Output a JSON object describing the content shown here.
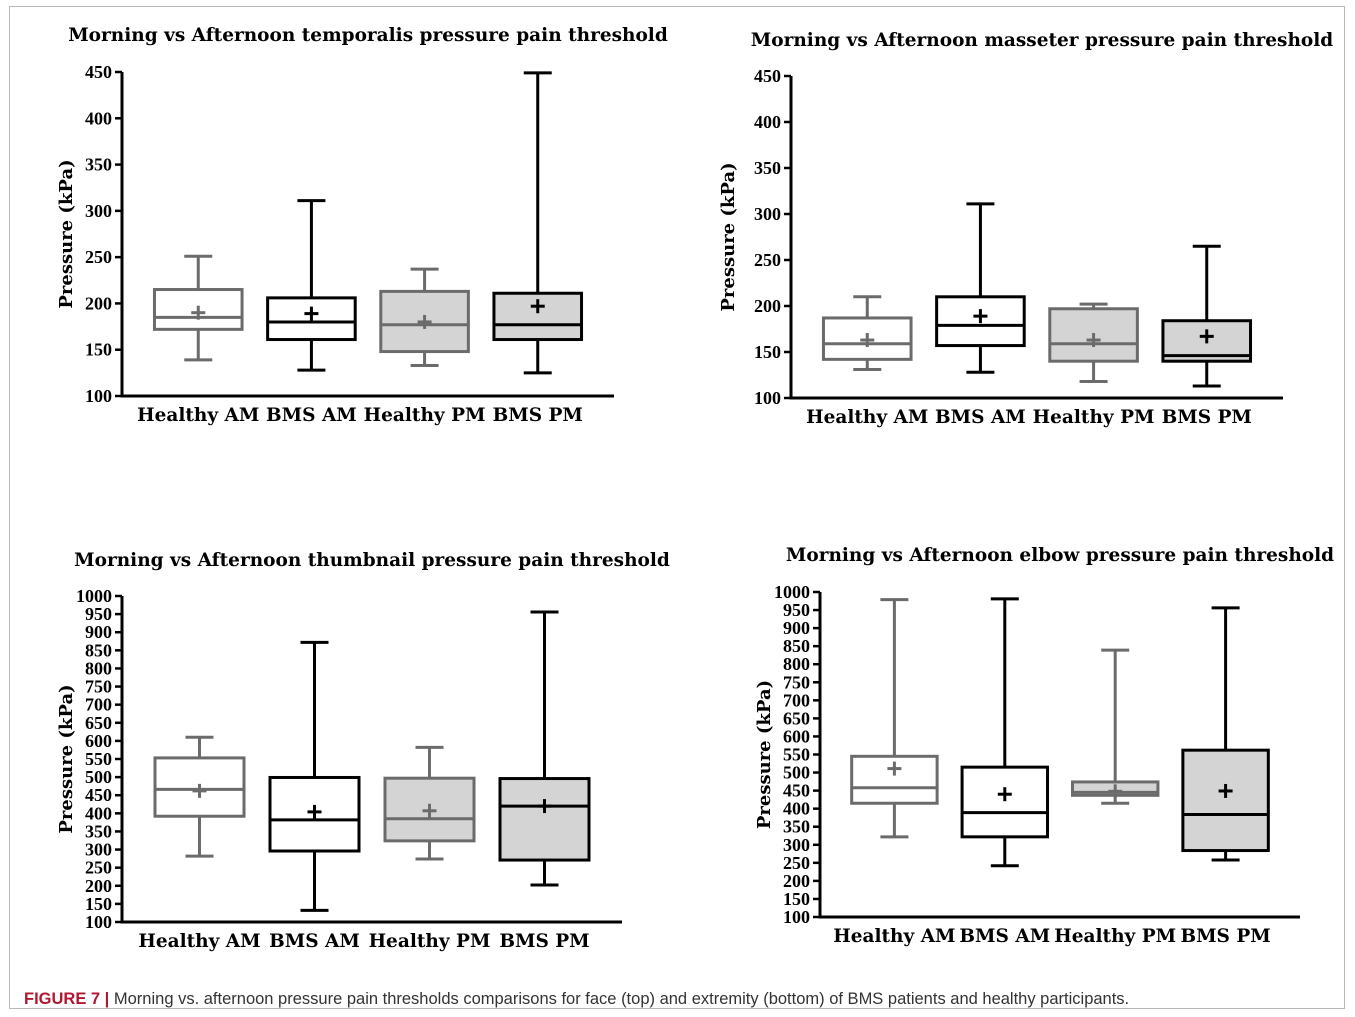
{
  "figure": {
    "label": "FIGURE 7 |",
    "caption": "Morning vs. afternoon pressure pain thresholds comparisons for face (top) and extremity (bottom) of BMS patients and healthy participants."
  },
  "colors": {
    "gray_stroke": "#6b6b6b",
    "black_stroke": "#000000",
    "pm_fill": "#d4d4d4",
    "caption_label": "#b01832"
  },
  "chart_data": [
    {
      "type": "box",
      "title": "Morning vs Afternoon temporalis pressure pain threshold",
      "ylabel": "Pressure (kPa)",
      "ylim": [
        100,
        450
      ],
      "yticks": [
        100,
        150,
        200,
        250,
        300,
        350,
        400,
        450
      ],
      "categories": [
        "Healthy AM",
        "BMS AM",
        "Healthy PM",
        "BMS PM"
      ],
      "boxes": [
        {
          "category": "Healthy AM",
          "min": 139,
          "q1": 172,
          "median": 185,
          "q3": 215,
          "max": 251,
          "mean": 190
        },
        {
          "category": "BMS AM",
          "min": 128,
          "q1": 161,
          "median": 180,
          "q3": 206,
          "max": 311,
          "mean": 189
        },
        {
          "category": "Healthy PM",
          "min": 133,
          "q1": 148,
          "median": 177,
          "q3": 213,
          "max": 237,
          "mean": 180
        },
        {
          "category": "BMS PM",
          "min": 125,
          "q1": 161,
          "median": 177,
          "q3": 211,
          "max": 449,
          "mean": 197
        }
      ]
    },
    {
      "type": "box",
      "title": "Morning vs Afternoon masseter pressure pain threshold",
      "ylabel": "Pressure (kPa)",
      "ylim": [
        100,
        450
      ],
      "yticks": [
        100,
        150,
        200,
        250,
        300,
        350,
        400,
        450
      ],
      "categories": [
        "Healthy AM",
        "BMS AM",
        "Healthy PM",
        "BMS PM"
      ],
      "boxes": [
        {
          "category": "Healthy AM",
          "min": 131,
          "q1": 142,
          "median": 159,
          "q3": 187,
          "max": 210,
          "mean": 163
        },
        {
          "category": "BMS AM",
          "min": 128,
          "q1": 157,
          "median": 179,
          "q3": 210,
          "max": 311,
          "mean": 189
        },
        {
          "category": "Healthy PM",
          "min": 118,
          "q1": 140,
          "median": 159,
          "q3": 197,
          "max": 202,
          "mean": 163
        },
        {
          "category": "BMS PM",
          "min": 113,
          "q1": 140,
          "median": 146,
          "q3": 184,
          "max": 265,
          "mean": 167
        }
      ]
    },
    {
      "type": "box",
      "title": "Morning vs Afternoon thumbnail pressure pain threshold",
      "ylabel": "Pressure (kPa)",
      "ylim": [
        100,
        1000
      ],
      "yticks": [
        100,
        150,
        200,
        250,
        300,
        350,
        400,
        450,
        500,
        550,
        600,
        650,
        700,
        750,
        800,
        850,
        900,
        950,
        1000
      ],
      "categories": [
        "Healthy AM",
        "BMS AM",
        "Healthy PM",
        "BMS PM"
      ],
      "boxes": [
        {
          "category": "Healthy AM",
          "min": 282,
          "q1": 392,
          "median": 466,
          "q3": 553,
          "max": 610,
          "mean": 462
        },
        {
          "category": "BMS AM",
          "min": 132,
          "q1": 296,
          "median": 382,
          "q3": 499,
          "max": 872,
          "mean": 404
        },
        {
          "category": "Healthy PM",
          "min": 274,
          "q1": 324,
          "median": 385,
          "q3": 497,
          "max": 582,
          "mean": 407
        },
        {
          "category": "BMS PM",
          "min": 202,
          "q1": 271,
          "median": 420,
          "q3": 496,
          "max": 956,
          "mean": 420
        }
      ]
    },
    {
      "type": "box",
      "title": "Morning vs Afternoon elbow pressure pain threshold",
      "ylabel": "Pressure (kPa)",
      "ylim": [
        100,
        1000
      ],
      "yticks": [
        100,
        150,
        200,
        250,
        300,
        350,
        400,
        450,
        500,
        550,
        600,
        650,
        700,
        750,
        800,
        850,
        900,
        950,
        1000
      ],
      "categories": [
        "Healthy AM",
        "BMS AM",
        "Healthy PM",
        "BMS PM"
      ],
      "boxes": [
        {
          "category": "Healthy AM",
          "min": 322,
          "q1": 415,
          "median": 458,
          "q3": 545,
          "max": 979,
          "mean": 511
        },
        {
          "category": "BMS AM",
          "min": 242,
          "q1": 322,
          "median": 389,
          "q3": 515,
          "max": 981,
          "mean": 440
        },
        {
          "category": "Healthy PM",
          "min": 415,
          "q1": 437,
          "median": 445,
          "q3": 474,
          "max": 839,
          "mean": 448
        },
        {
          "category": "BMS PM",
          "min": 258,
          "q1": 284,
          "median": 384,
          "q3": 562,
          "max": 956,
          "mean": 449
        }
      ]
    }
  ]
}
